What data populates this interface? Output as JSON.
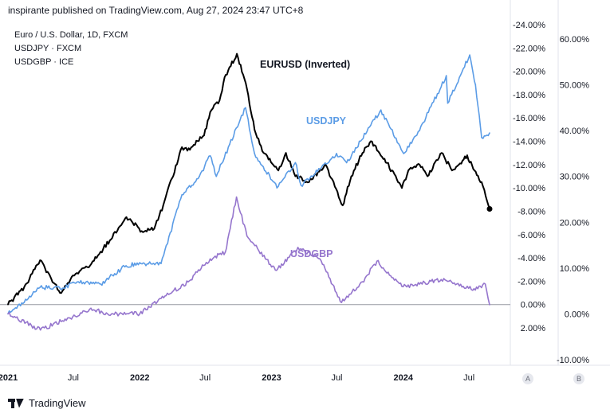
{
  "header": {
    "text": "inspirante published on TradingView.com, Aug 27, 2024 23:47 UTC+8"
  },
  "legend": [
    {
      "text": "Euro / U.S. Dollar, 1D, FXCM"
    },
    {
      "text": "USDJPY · FXCM"
    },
    {
      "text": "USDGBP · ICE"
    }
  ],
  "footer": {
    "brand": "TradingView",
    "logo_icon": "tradingview-logo-icon"
  },
  "scale_buttons": {
    "a": "A",
    "b": "B"
  },
  "chart_data": {
    "type": "line",
    "x_axis": {
      "ticks": [
        "2021",
        "Jul",
        "2022",
        "Jul",
        "2023",
        "Jul",
        "2024",
        "Jul"
      ],
      "range": [
        "2021-01-01",
        "2024-08-27"
      ]
    },
    "axis_a": {
      "side": "right-inner",
      "ticks": [
        "-24.00%",
        "-22.00%",
        "-20.00%",
        "-18.00%",
        "-16.00%",
        "-14.00%",
        "-12.00%",
        "-10.00%",
        "-8.00%",
        "-6.00%",
        "-4.00%",
        "-2.00%",
        "0.00%",
        "2.00%"
      ],
      "ylim": [
        -24,
        2
      ]
    },
    "axis_b": {
      "side": "right-outer",
      "ticks": [
        "60.00%",
        "50.00%",
        "40.00%",
        "30.00%",
        "20.00%",
        "10.00%",
        "0.00%",
        "-10.00%"
      ],
      "ylim": [
        -10,
        60
      ]
    },
    "grid": false,
    "zero_line": true,
    "series": [
      {
        "name": "EURUSD (Inverted)",
        "color": "#000000",
        "axis": "a",
        "x": [
          "2021-01-01",
          "2021-02-15",
          "2021-03-31",
          "2021-05-25",
          "2021-06-30",
          "2021-08-20",
          "2021-10-10",
          "2021-11-25",
          "2022-01-10",
          "2022-02-10",
          "2022-03-07",
          "2022-04-28",
          "2022-05-13",
          "2022-06-28",
          "2022-07-15",
          "2022-08-10",
          "2022-08-24",
          "2022-09-27",
          "2022-10-25",
          "2022-11-15",
          "2022-12-10",
          "2023-01-20",
          "2023-02-10",
          "2023-03-08",
          "2023-04-15",
          "2023-05-31",
          "2023-07-17",
          "2023-08-10",
          "2023-09-10",
          "2023-10-03",
          "2023-11-10",
          "2023-12-28",
          "2024-01-15",
          "2024-02-15",
          "2024-03-08",
          "2024-04-16",
          "2024-05-15",
          "2024-06-03",
          "2024-06-26",
          "2024-07-16",
          "2024-08-05",
          "2024-08-27"
        ],
        "values": [
          0.0,
          -1.5,
          -3.8,
          -1.0,
          -2.5,
          -3.5,
          -5.5,
          -7.5,
          -6.2,
          -6.5,
          -8.5,
          -13.5,
          -13.2,
          -14.5,
          -16.5,
          -17.5,
          -19.5,
          -21.5,
          -18.5,
          -15.0,
          -13.0,
          -11.5,
          -13.0,
          -11.0,
          -10.5,
          -12.0,
          -8.5,
          -11.0,
          -13.0,
          -14.0,
          -12.5,
          -10.0,
          -11.5,
          -12.0,
          -11.0,
          -13.0,
          -11.5,
          -12.0,
          -12.8,
          -11.5,
          -10.5,
          -8.2
        ]
      },
      {
        "name": "USDJPY",
        "color": "#5b9ce6",
        "axis": "b",
        "x": [
          "2021-01-01",
          "2021-02-15",
          "2021-03-31",
          "2021-05-25",
          "2021-07-15",
          "2021-09-15",
          "2021-11-24",
          "2022-01-04",
          "2022-03-01",
          "2022-04-28",
          "2022-06-15",
          "2022-07-15",
          "2022-08-01",
          "2022-09-07",
          "2022-10-21",
          "2022-11-15",
          "2023-01-16",
          "2023-03-08",
          "2023-03-24",
          "2023-06-30",
          "2023-07-28",
          "2023-10-31",
          "2024-01-02",
          "2024-02-15",
          "2024-04-29",
          "2024-05-03",
          "2024-07-03",
          "2024-07-19",
          "2024-08-05",
          "2024-08-27"
        ],
        "values": [
          0.0,
          2.5,
          5.8,
          5.6,
          7.0,
          6.5,
          10.5,
          11.0,
          11.0,
          26.0,
          30.0,
          34.5,
          30.0,
          37.0,
          45.0,
          35.0,
          27.5,
          33.0,
          28.0,
          35.0,
          33.0,
          44.5,
          35.0,
          40.0,
          52.0,
          46.0,
          56.5,
          50.0,
          38.5,
          39.5
        ]
      },
      {
        "name": "USDGBP",
        "color": "#9575cd",
        "axis": "b",
        "x": [
          "2021-01-01",
          "2021-04-01",
          "2021-06-01",
          "2021-08-15",
          "2021-10-15",
          "2022-01-01",
          "2022-03-15",
          "2022-05-15",
          "2022-07-15",
          "2022-08-26",
          "2022-09-26",
          "2022-10-25",
          "2022-12-15",
          "2023-01-15",
          "2023-03-15",
          "2023-05-15",
          "2023-07-14",
          "2023-09-10",
          "2023-10-20",
          "2023-12-28",
          "2024-02-15",
          "2024-04-15",
          "2024-06-15",
          "2024-07-15",
          "2024-08-15",
          "2024-08-27"
        ],
        "values": [
          0.0,
          -3.5,
          -1.5,
          1.0,
          0.0,
          0.0,
          4.0,
          7.0,
          12.0,
          13.5,
          25.5,
          17.0,
          12.0,
          9.5,
          14.5,
          12.0,
          2.5,
          7.0,
          11.5,
          6.0,
          6.5,
          7.5,
          6.0,
          5.5,
          6.5,
          2.0
        ]
      }
    ],
    "labels": [
      {
        "text": "EURUSD (Inverted)",
        "series": 0
      },
      {
        "text": "USDJPY",
        "series": 1
      },
      {
        "text": "USDGBP",
        "series": 2
      }
    ]
  }
}
